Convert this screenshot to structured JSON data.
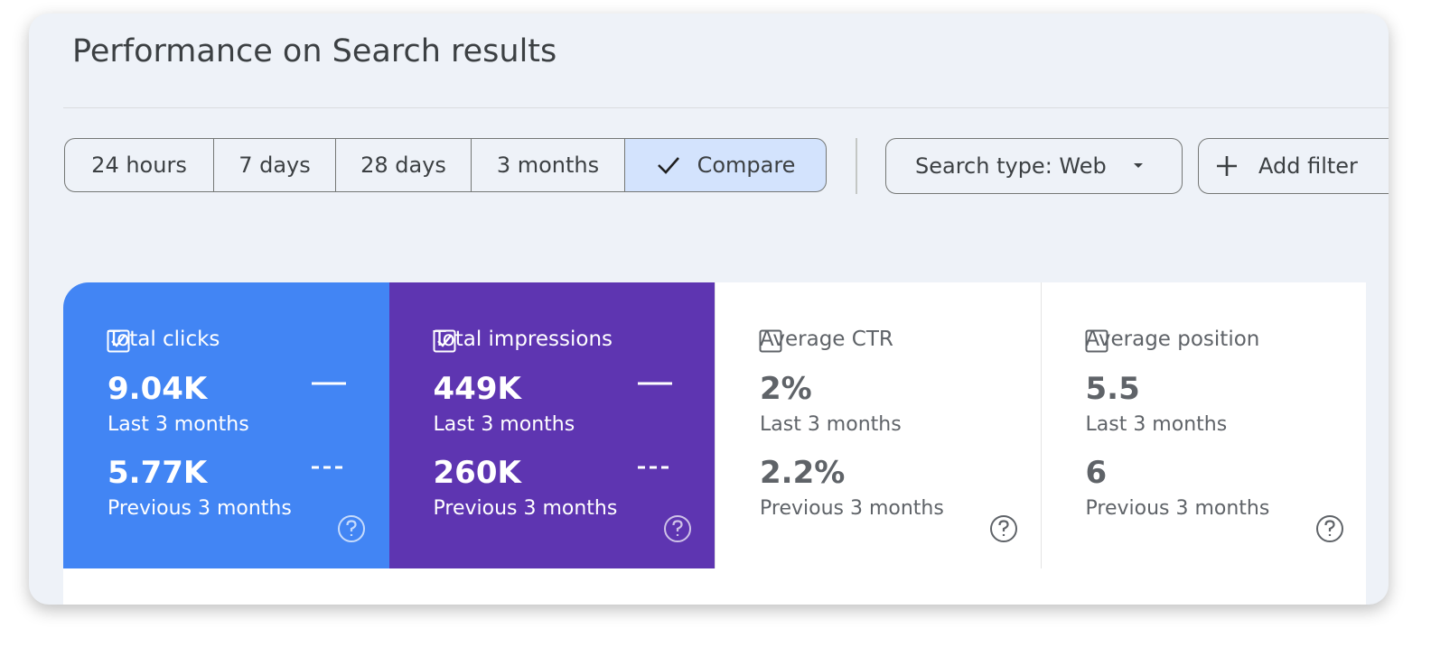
{
  "header": {
    "title": "Performance on Search results"
  },
  "toolbar": {
    "ranges": [
      "24 hours",
      "7 days",
      "28 days",
      "3 months"
    ],
    "compare": "Compare",
    "search_type": "Search type: Web",
    "add_filter": "Add filter"
  },
  "metrics": [
    {
      "label": "Total clicks",
      "checked": true,
      "color": "#4285f4",
      "current": "9.04K",
      "current_period": "Last 3 months",
      "previous": "5.77K",
      "previous_period": "Previous 3 months"
    },
    {
      "label": "Total impressions",
      "checked": true,
      "color": "#5e35b1",
      "current": "449K",
      "current_period": "Last 3 months",
      "previous": "260K",
      "previous_period": "Previous 3 months"
    },
    {
      "label": "Average CTR",
      "checked": false,
      "color": "#ffffff",
      "current": "2%",
      "current_period": "Last 3 months",
      "previous": "2.2%",
      "previous_period": "Previous 3 months"
    },
    {
      "label": "Average position",
      "checked": false,
      "color": "#ffffff",
      "current": "5.5",
      "current_period": "Last 3 months",
      "previous": "6",
      "previous_period": "Previous 3 months"
    }
  ]
}
